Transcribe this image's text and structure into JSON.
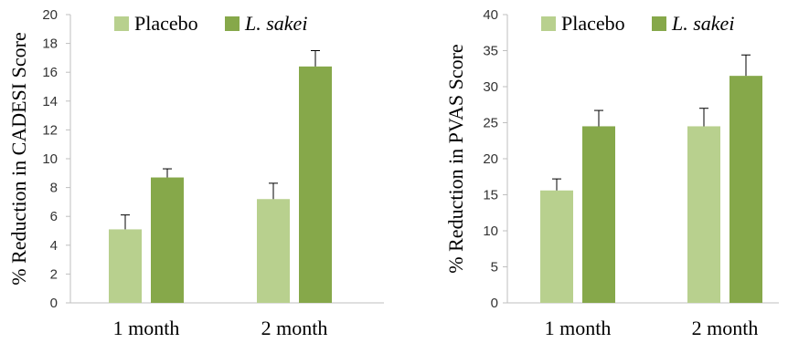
{
  "colors": {
    "placebo": "#b8d08e",
    "sakei": "#86a84a",
    "axis": "#bfbfbf",
    "error": "#000000"
  },
  "chart_data": [
    {
      "type": "bar",
      "ylabel": "% Reduction in CADESI Score",
      "ylim": [
        0,
        20
      ],
      "yticks": [
        0,
        2,
        4,
        6,
        8,
        10,
        12,
        14,
        16,
        18,
        20
      ],
      "categories": [
        "1 month",
        "2 month"
      ],
      "grid": false,
      "legend_position": "top",
      "series": [
        {
          "name": "Placebo",
          "values": [
            5.1,
            7.2
          ],
          "errors": [
            1.0,
            1.1
          ]
        },
        {
          "name": "L. sakei",
          "values": [
            8.7,
            16.4
          ],
          "errors": [
            0.6,
            1.1
          ]
        }
      ]
    },
    {
      "type": "bar",
      "ylabel": "% Reduction in PVAS Score",
      "ylim": [
        0,
        40
      ],
      "yticks": [
        0,
        5,
        10,
        15,
        20,
        25,
        30,
        35,
        40
      ],
      "categories": [
        "1 month",
        "2 month"
      ],
      "grid": false,
      "legend_position": "top",
      "series": [
        {
          "name": "Placebo",
          "values": [
            15.6,
            24.5
          ],
          "errors": [
            1.6,
            2.5
          ]
        },
        {
          "name": "L. sakei",
          "values": [
            24.5,
            31.5
          ],
          "errors": [
            2.2,
            2.9
          ]
        }
      ]
    }
  ]
}
